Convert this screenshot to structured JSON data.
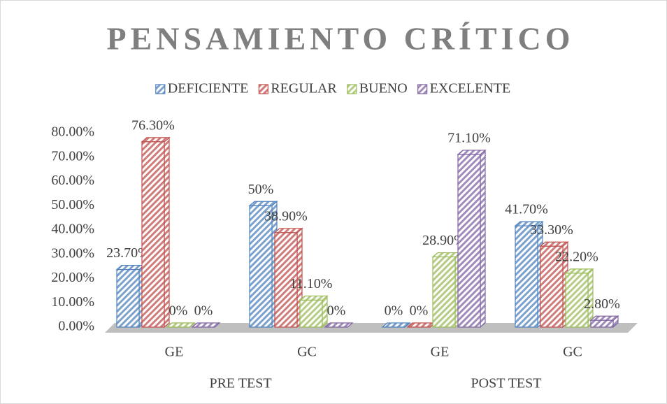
{
  "chart_data": {
    "type": "bar3d",
    "title": "PENSAMIENTO CRÍTICO",
    "categories": [
      "GE",
      "GC",
      "GE",
      "GC"
    ],
    "category_groups": [
      "PRE TEST",
      "POST TEST"
    ],
    "series": [
      {
        "name": "DEFICIENTE",
        "color": "#4f81bd",
        "values": [
          23.7,
          50,
          0,
          41.7
        ],
        "value_labels": [
          "23.70%",
          "50%",
          "0%",
          "41.70%"
        ]
      },
      {
        "name": "REGULAR",
        "color": "#c0504d",
        "values": [
          76.3,
          38.9,
          0,
          33.3
        ],
        "value_labels": [
          "76.30%",
          "38.90%",
          "0%",
          "33.30%"
        ]
      },
      {
        "name": "BUENO",
        "color": "#9bbb59",
        "values": [
          0,
          11.1,
          28.9,
          22.2
        ],
        "value_labels": [
          "0%",
          "11.10%",
          "28.90%",
          "22.20%"
        ]
      },
      {
        "name": "EXCELENTE",
        "color": "#8064a2",
        "values": [
          0,
          0,
          71.1,
          2.8
        ],
        "value_labels": [
          "0%",
          "0%",
          "71.10%",
          "2.80%"
        ]
      }
    ],
    "ylim": [
      0,
      80
    ],
    "yticks": [
      {
        "value": 0,
        "label": "0.00%"
      },
      {
        "value": 10,
        "label": "10.00%"
      },
      {
        "value": 20,
        "label": "20.00%"
      },
      {
        "value": 30,
        "label": "30.00%"
      },
      {
        "value": 40,
        "label": "40.00%"
      },
      {
        "value": 50,
        "label": "50.00%"
      },
      {
        "value": 60,
        "label": "60.00%"
      },
      {
        "value": 70,
        "label": "70.00%"
      },
      {
        "value": 80,
        "label": "80.00%"
      }
    ],
    "legend": "top"
  }
}
